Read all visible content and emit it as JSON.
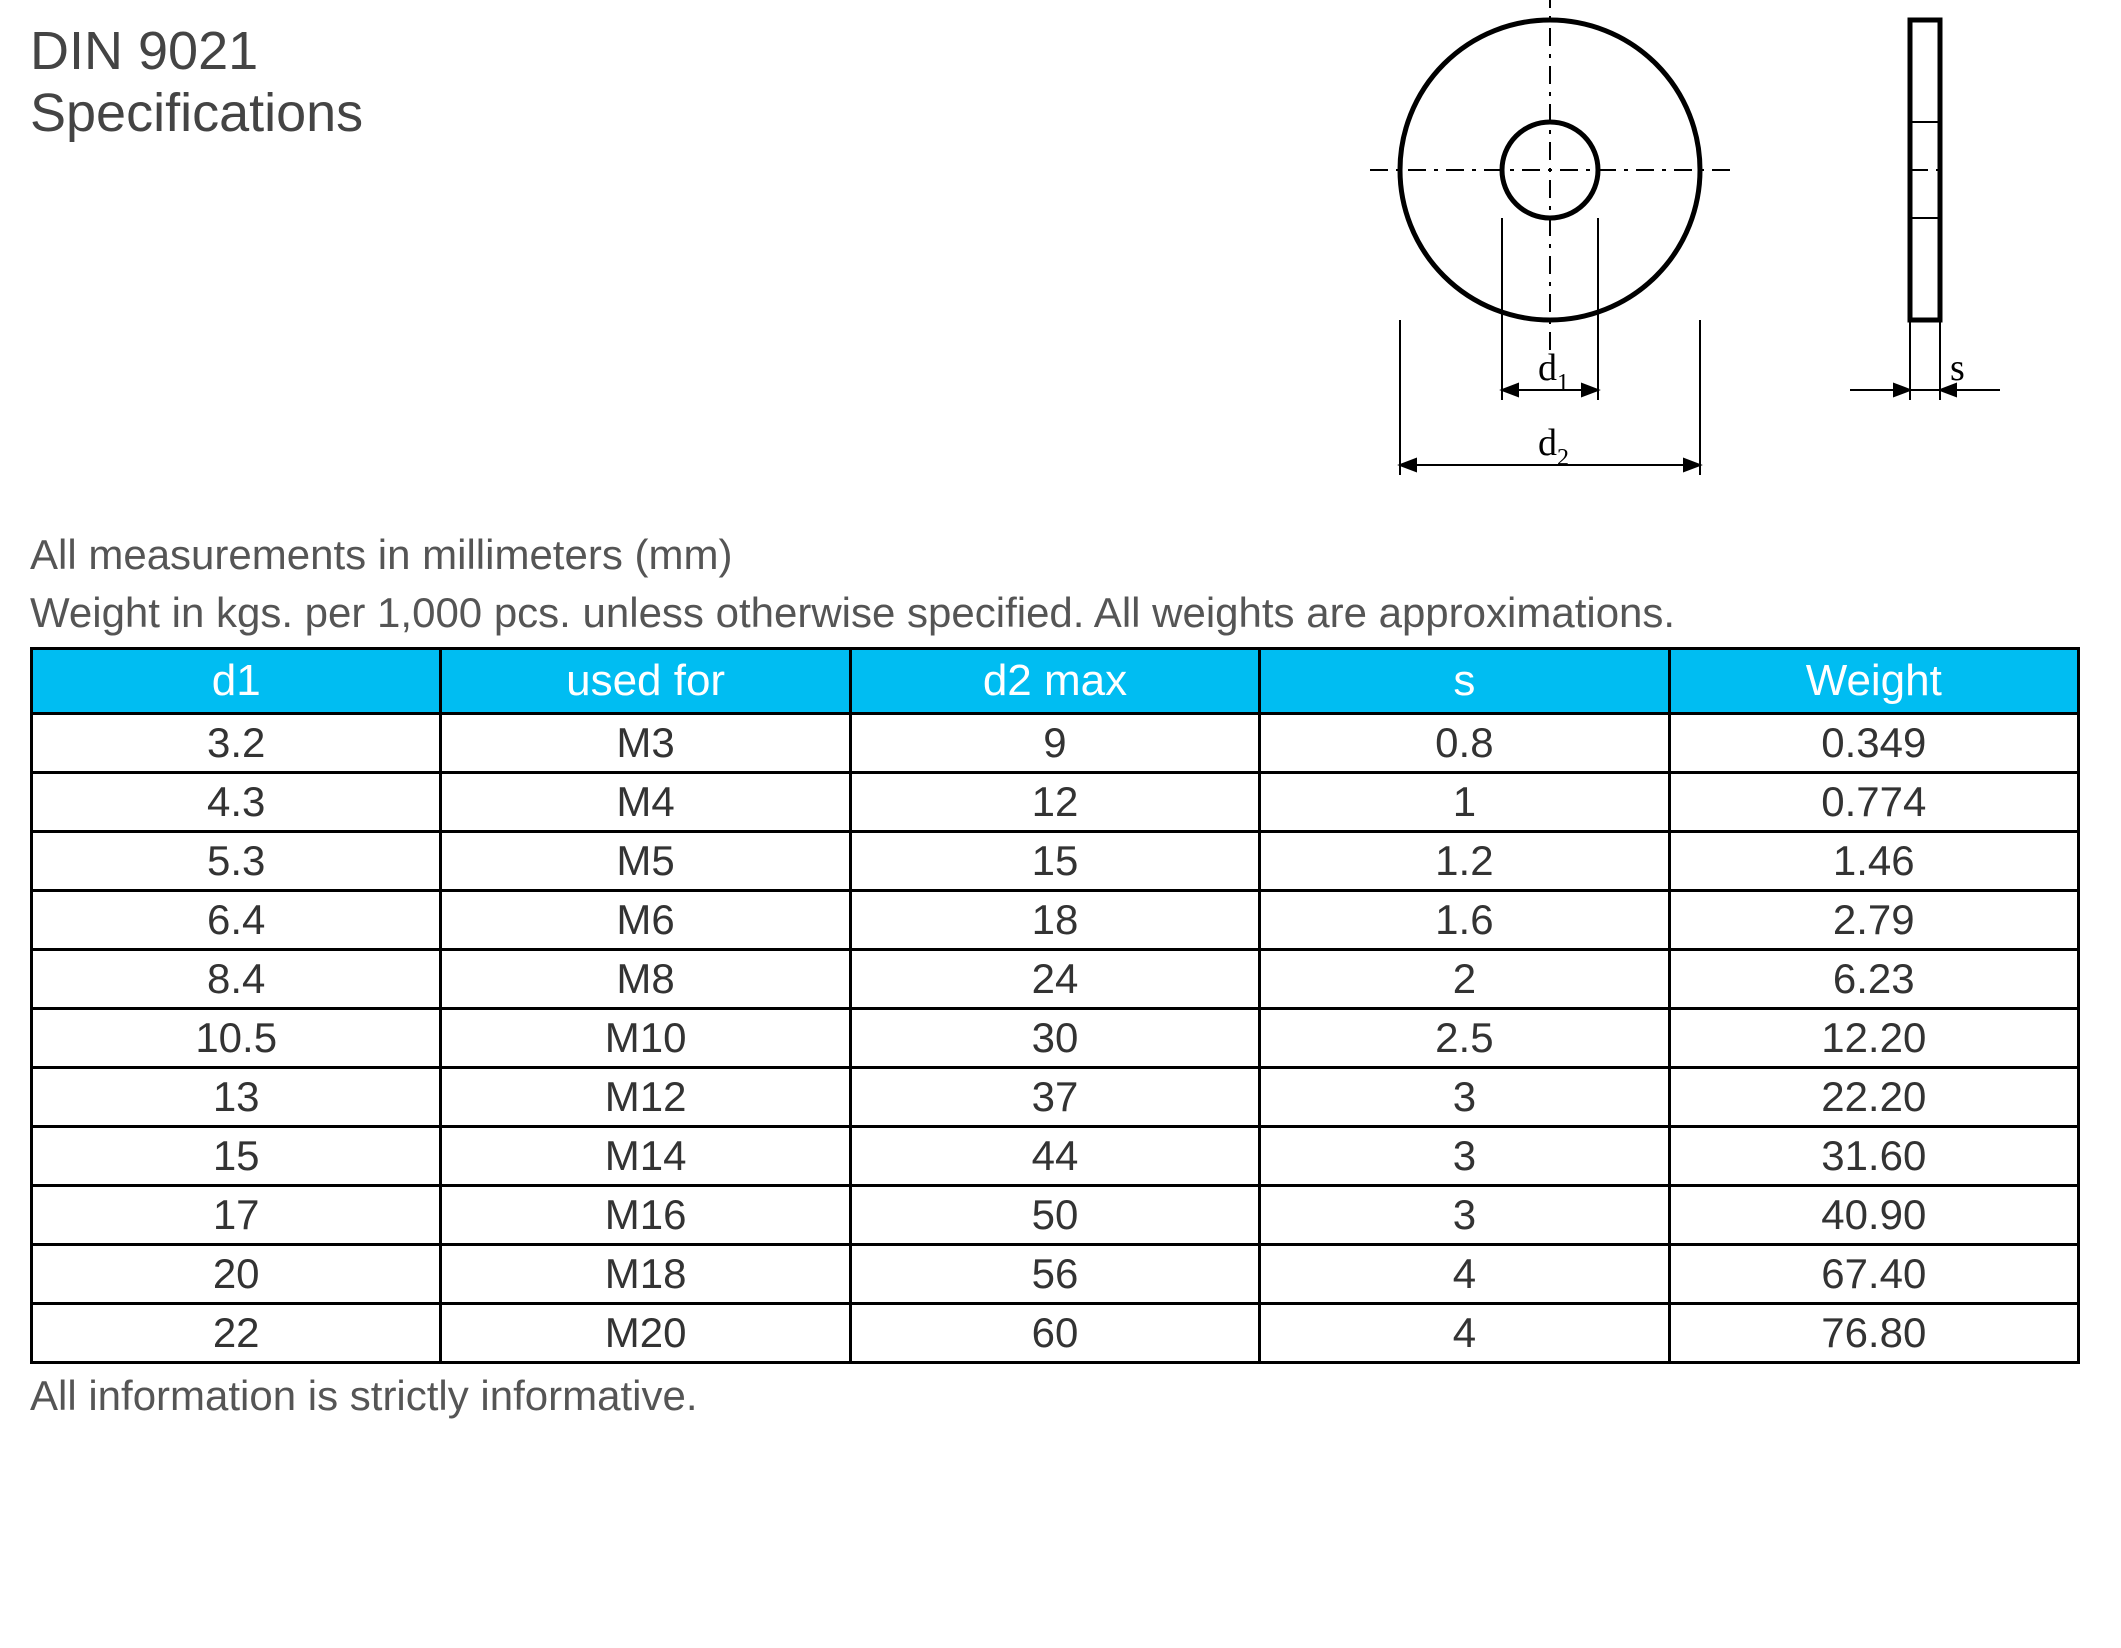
{
  "title": "DIN 9021 Specifications",
  "note1": "All measurements in millimeters (mm)",
  "note2": "Weight in kgs. per 1,000 pcs. unless otherwise specified. All weights are approximations.",
  "footer": "All information is strictly informative.",
  "diagram": {
    "d1_label": "d",
    "d1_sub": "1",
    "d2_label": "d",
    "d2_sub": "2",
    "s_label": "s",
    "stroke": "#000000",
    "dash": "6,6"
  },
  "table": {
    "header_bg": "#00bdf2",
    "header_fg": "#ffffff",
    "border_color": "#000000",
    "columns": [
      "d1",
      "used for",
      "d2 max",
      "s",
      "Weight"
    ],
    "rows": [
      [
        "3.2",
        "M3",
        "9",
        "0.8",
        "0.349"
      ],
      [
        "4.3",
        "M4",
        "12",
        "1",
        "0.774"
      ],
      [
        "5.3",
        "M5",
        "15",
        "1.2",
        "1.46"
      ],
      [
        "6.4",
        "M6",
        "18",
        "1.6",
        "2.79"
      ],
      [
        "8.4",
        "M8",
        "24",
        "2",
        "6.23"
      ],
      [
        "10.5",
        "M10",
        "30",
        "2.5",
        "12.20"
      ],
      [
        "13",
        "M12",
        "37",
        "3",
        "22.20"
      ],
      [
        "15",
        "M14",
        "44",
        "3",
        "31.60"
      ],
      [
        "17",
        "M16",
        "50",
        "3",
        "40.90"
      ],
      [
        "20",
        "M18",
        "56",
        "4",
        "67.40"
      ],
      [
        "22",
        "M20",
        "60",
        "4",
        "76.80"
      ]
    ]
  }
}
